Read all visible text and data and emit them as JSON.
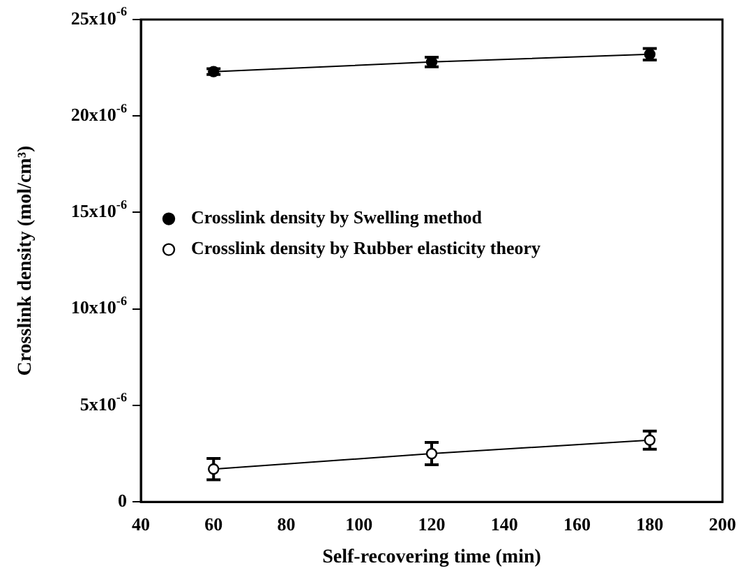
{
  "chart_data": {
    "type": "line",
    "xlabel": "Self-recovering time (min)",
    "ylabel": "Crosslink density (mol/cm³)",
    "xlim": [
      40,
      200
    ],
    "xticks": [
      40,
      60,
      80,
      100,
      120,
      140,
      160,
      180,
      200
    ],
    "ylim": [
      0,
      2.5e-05
    ],
    "yticks": [
      {
        "value": 0,
        "label": "0"
      },
      {
        "value": 5e-06,
        "label": "5x10$^{-6}$"
      },
      {
        "value": 1e-05,
        "label": "10x10$^{-6}$"
      },
      {
        "value": 1.5e-05,
        "label": "15x10$^{-6}$"
      },
      {
        "value": 2e-05,
        "label": "20x10$^{-6}$"
      },
      {
        "value": 2.5e-05,
        "label": "25x10$^{-6}$"
      }
    ],
    "x": [
      60,
      120,
      180
    ],
    "marker": "circle",
    "line_style": "solid",
    "grid": false,
    "legend": "left",
    "series": [
      {
        "name": "Crosslink density by Swelling method",
        "color": "#000000",
        "values": [
          2.23e-05,
          2.28e-05,
          2.32e-05
        ],
        "errors": [
          1.5e-07,
          2.5e-07,
          3e-07
        ]
      },
      {
        "name": "Crosslink density by Rubber elasticity theory",
        "color": "#000000",
        "values": [
          1.7e-06,
          2.5e-06,
          3.2e-06
        ],
        "errors": [
          5.5e-07,
          5.8e-07,
          4.7e-07
        ]
      }
    ]
  }
}
